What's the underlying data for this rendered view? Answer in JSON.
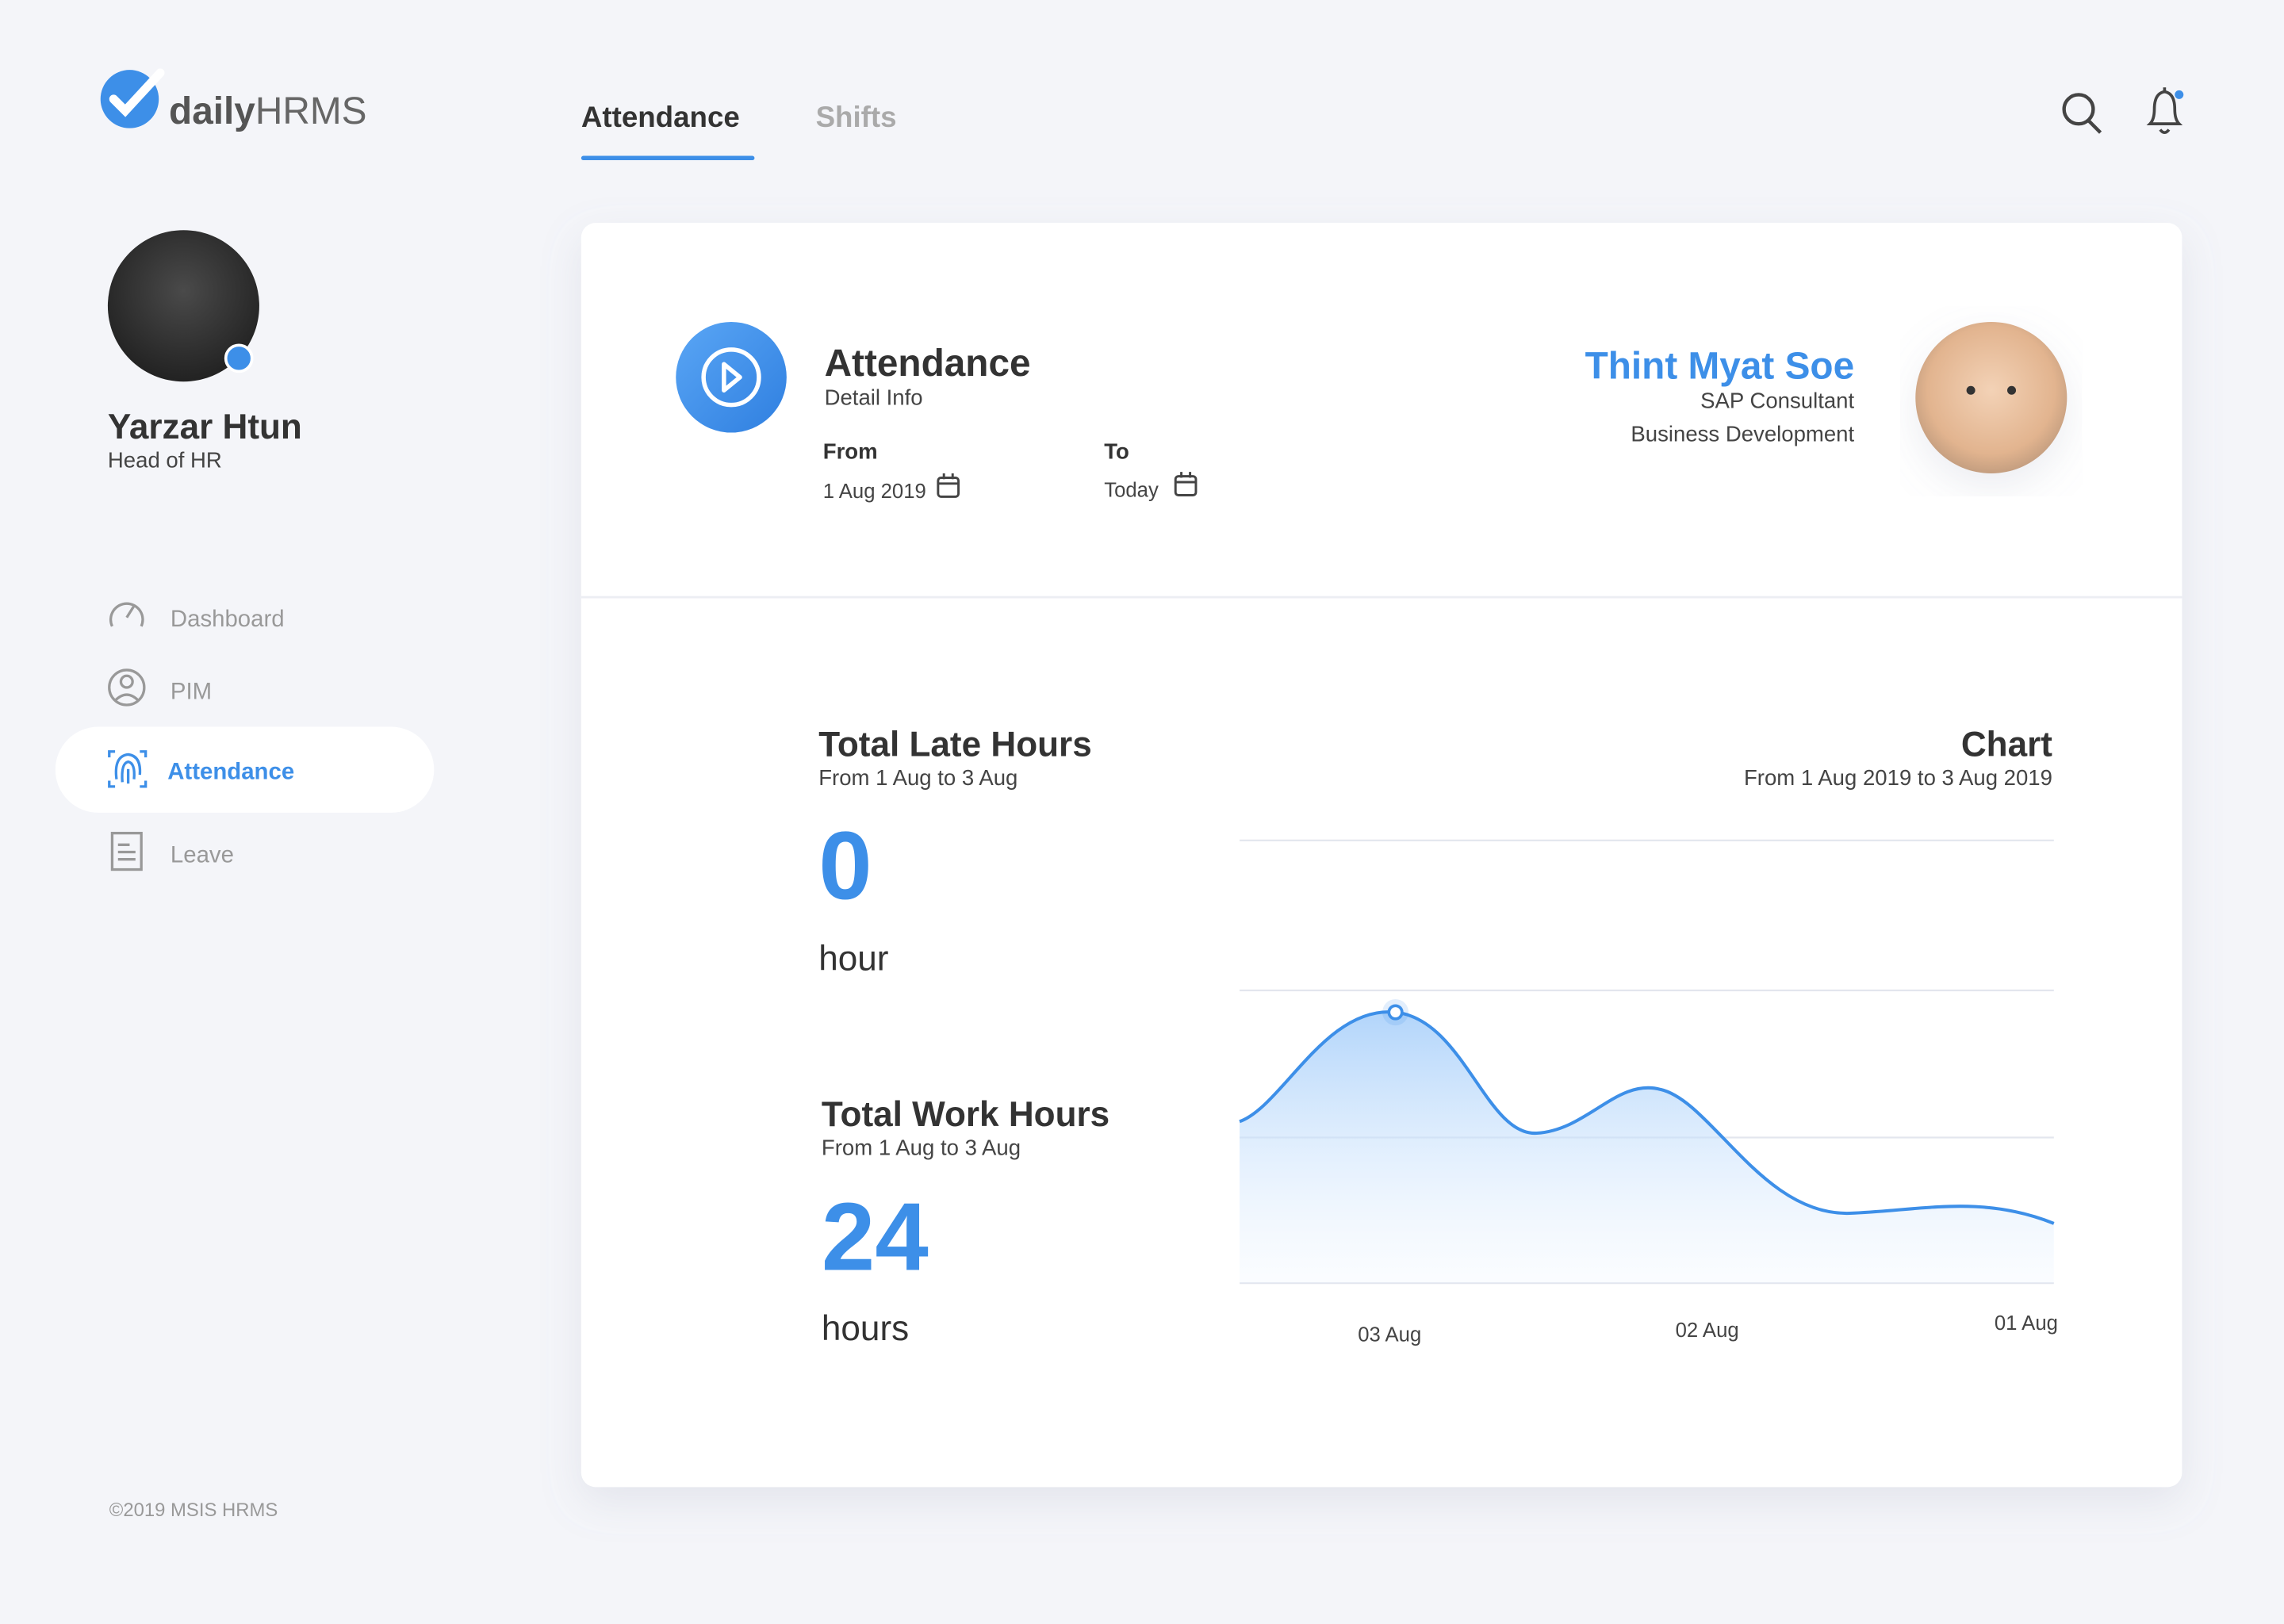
{
  "brand": {
    "logo_bold": "daily",
    "logo_light": "HRMS"
  },
  "tabs": [
    "Attendance",
    "Shifts"
  ],
  "user": {
    "name": "Yarzar Htun",
    "role": "Head of HR"
  },
  "nav": [
    "Dashboard",
    "PIM",
    "Attendance",
    "Leave"
  ],
  "footer": "©2019 MSIS HRMS",
  "card": {
    "header": {
      "title": "Attendance",
      "subtitle": "Detail Info",
      "from_label": "From",
      "from_value": "1 Aug 2019",
      "to_label": "To",
      "to_value": "Today"
    },
    "employee": {
      "name": "Thint Myat Soe",
      "title": "SAP Consultant",
      "department": "Business Development"
    },
    "stats": [
      {
        "title": "Total Late Hours",
        "range": "From 1 Aug to 3 Aug",
        "value": 0,
        "unit": "hour"
      },
      {
        "title": "Total Work Hours",
        "range": "From 1 Aug to 3 Aug",
        "value": 24,
        "unit": "hours"
      }
    ],
    "chart": {
      "title": "Chart",
      "subtitle": "From 1 Aug 2019 to 3 Aug 2019",
      "categories": [
        "03 Aug",
        "02 Aug",
        "01 Aug"
      ]
    }
  }
}
